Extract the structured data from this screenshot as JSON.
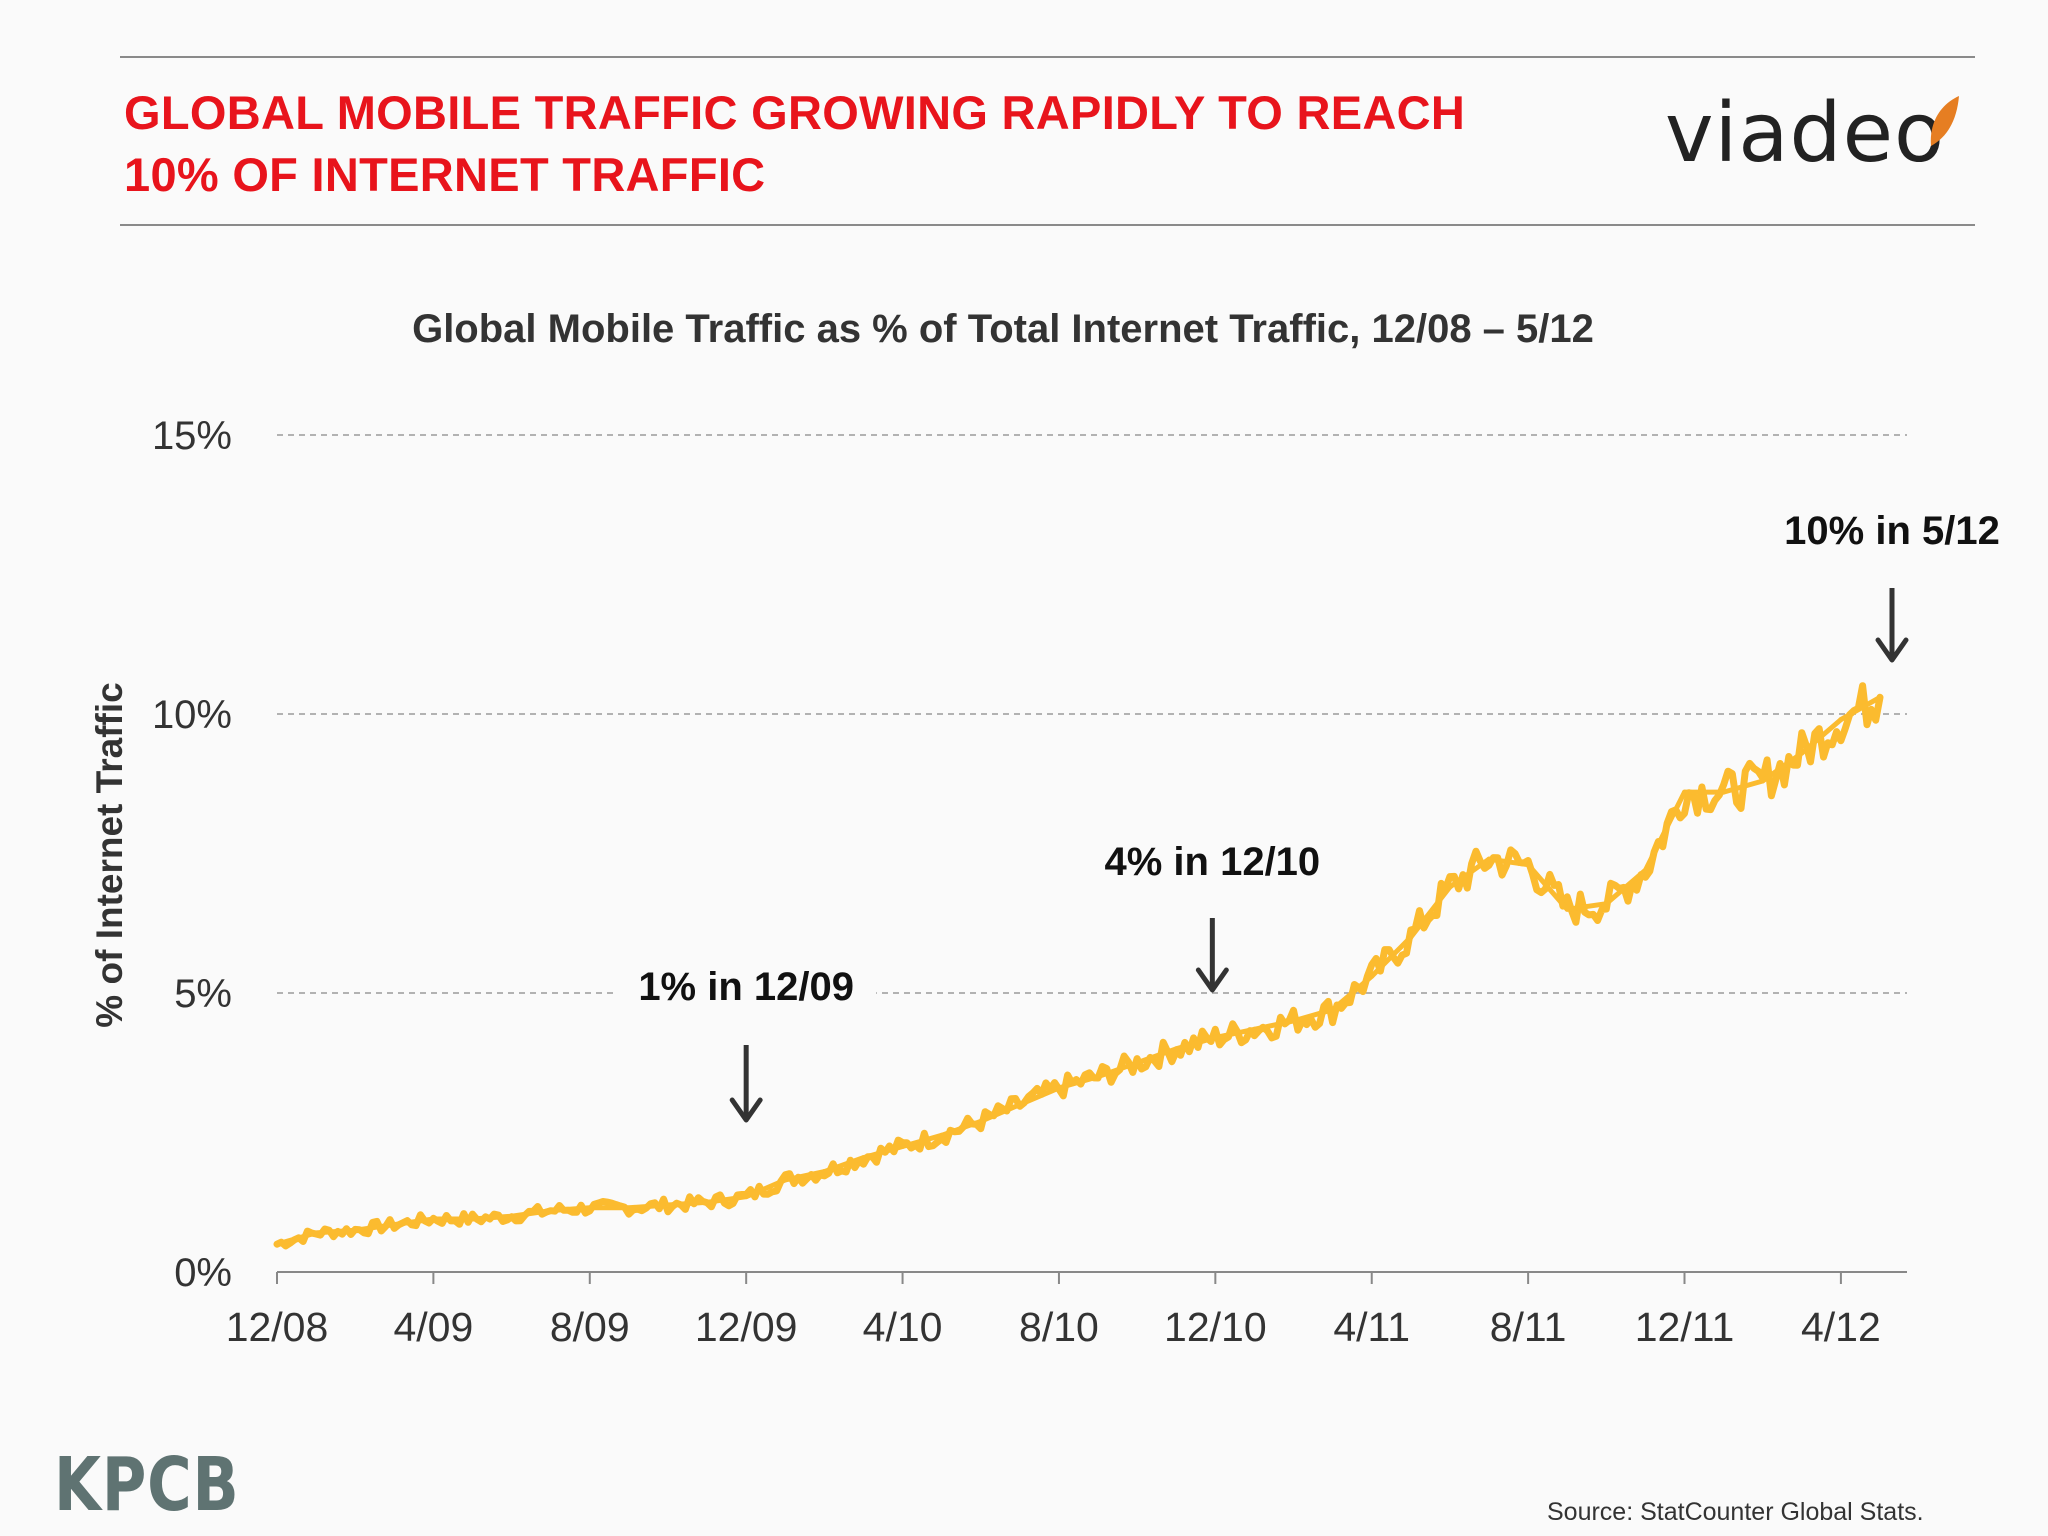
{
  "slide": {
    "title_line1": "GLOBAL MOBILE TRAFFIC GROWING RAPIDLY TO REACH",
    "title_line2": "10% OF INTERNET TRAFFIC",
    "logo_text": "viadeo",
    "footer_logo": "KPCB",
    "source": "Source: StatCounter Global Stats."
  },
  "colors": {
    "title": "#e8141c",
    "series": "#fbbb2f",
    "leaf": "#e67e22",
    "footer_logo": "#5f7372"
  },
  "chart_data": {
    "type": "line",
    "title": "Global Mobile Traffic as % of Total Internet Traffic, 12/08 – 5/12",
    "xlabel": "",
    "ylabel": "% of Internet Traffic",
    "ylim": [
      0,
      15
    ],
    "yticks": [
      0,
      5,
      10,
      15
    ],
    "ytick_labels": [
      "0%",
      "5%",
      "10%",
      "15%"
    ],
    "x_unit": "months",
    "x_range": [
      "12/08",
      "5/12"
    ],
    "xtick_labels": [
      "12/08",
      "4/09",
      "8/09",
      "12/09",
      "4/10",
      "8/10",
      "12/10",
      "4/11",
      "8/11",
      "12/11",
      "4/12"
    ],
    "grid": "horizontal dashed",
    "series": [
      {
        "x": [
          "12/08",
          "1/09",
          "2/09",
          "3/09",
          "4/09",
          "5/09",
          "6/09",
          "7/09",
          "8/09",
          "9/09",
          "10/09",
          "11/09",
          "12/09",
          "1/10",
          "2/10",
          "3/10",
          "4/10",
          "5/10",
          "6/10",
          "7/10",
          "8/10",
          "9/10",
          "10/10",
          "11/10",
          "12/10",
          "1/11",
          "2/11",
          "3/11",
          "4/11",
          "5/11",
          "6/11",
          "7/11",
          "8/11",
          "9/11",
          "10/11",
          "11/11",
          "12/11",
          "1/12",
          "2/12",
          "3/12",
          "4/12",
          "5/12"
        ],
        "values": [
          0.5,
          0.7,
          0.75,
          0.85,
          0.95,
          0.95,
          1.0,
          1.1,
          1.15,
          1.15,
          1.2,
          1.25,
          1.35,
          1.65,
          1.8,
          2.05,
          2.25,
          2.45,
          2.7,
          3.0,
          3.3,
          3.5,
          3.75,
          4.0,
          4.2,
          4.35,
          4.5,
          4.7,
          5.3,
          6.0,
          6.9,
          7.4,
          7.3,
          6.5,
          6.6,
          7.2,
          8.6,
          8.6,
          8.8,
          9.3,
          9.9,
          10.3
        ]
      }
    ],
    "annotations": [
      {
        "text": "1% in 12/09",
        "x": "12/09"
      },
      {
        "text": "4% in 12/10",
        "x": "12/10"
      },
      {
        "text": "10% in 5/12",
        "x": "5/12"
      }
    ]
  }
}
